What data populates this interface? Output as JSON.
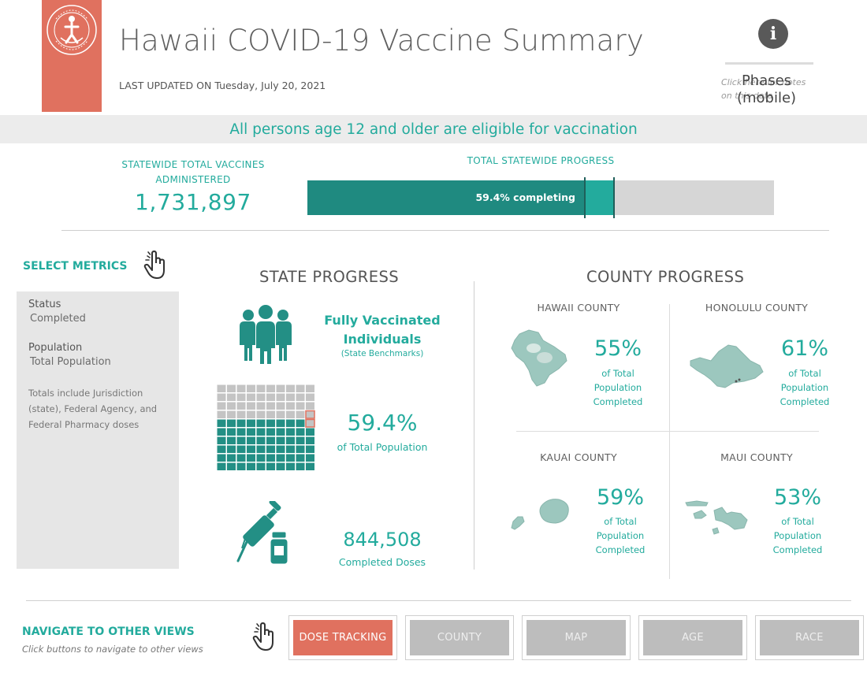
{
  "header": {
    "title": "Hawaii COVID-19 Vaccine Summary",
    "updated_label": "LAST UPDATED ON",
    "updated_date": "Tuesday, July 20, 2021",
    "info_icon": "info-icon",
    "info_note": "Click here for notes on this data",
    "phases_label": "Phases (mobile)",
    "brand_color": "#E0715F"
  },
  "banner": {
    "text": "All persons age 12 and older are eligible for vaccination"
  },
  "kpi": {
    "total_label": "STATEWIDE TOTAL VACCINES ADMINISTERED",
    "total_value": "1,731,897",
    "progress_label": "TOTAL STATEWIDE PROGRESS",
    "progress_text": "59.4% completing",
    "completed_fraction": 0.594,
    "initiated_fraction": 0.657
  },
  "metrics": {
    "title": "SELECT METRICS",
    "hand_icon": "pointer-hand-icon",
    "status_label": "Status",
    "status_value": "Completed",
    "population_label": "Population",
    "population_value": "Total Population",
    "note": "Totals include Jurisdiction (state), Federal Agency, and Federal Pharmacy doses"
  },
  "state": {
    "title": "STATE PROGRESS",
    "people_icon": "people-group-icon",
    "fv_title": "Fully Vaccinated Individuals",
    "fv_sub": "(State Benchmarks)",
    "waffle_icon": "waffle-grid-icon",
    "waffle_filled": 59,
    "pct": "59.4%",
    "pct_sub": "of Total Population",
    "syringe_icon": "syringe-vial-icon",
    "doses": "844,508",
    "doses_sub": "Completed Doses"
  },
  "county": {
    "title": "COUNTY PROGRESS",
    "counties": [
      {
        "name": "HAWAII COUNTY",
        "pct": "55%",
        "sub": "of Total Population Completed",
        "icon": "hawaii-island-map-icon"
      },
      {
        "name": "HONOLULU COUNTY",
        "pct": "61%",
        "sub": "of Total Population Completed",
        "icon": "oahu-island-map-icon"
      },
      {
        "name": "KAUAI COUNTY",
        "pct": "59%",
        "sub": "of Total Population Completed",
        "icon": "kauai-island-map-icon"
      },
      {
        "name": "MAUI COUNTY",
        "pct": "53%",
        "sub": "of Total Population Completed",
        "icon": "maui-islands-map-icon"
      }
    ]
  },
  "nav": {
    "title": "NAVIGATE TO OTHER VIEWS",
    "hint": "Click buttons to navigate to other views",
    "buttons": [
      {
        "label": "DOSE TRACKING",
        "active": true
      },
      {
        "label": "COUNTY",
        "active": false
      },
      {
        "label": "MAP",
        "active": false
      },
      {
        "label": "AGE",
        "active": false
      },
      {
        "label": "RACE",
        "active": false
      }
    ]
  },
  "colors": {
    "accent": "#23ab9d",
    "accent_dark": "#1f8a80",
    "brand": "#E0715F",
    "panel": "#e6e6e6",
    "button_gray": "#bdbdbd"
  }
}
